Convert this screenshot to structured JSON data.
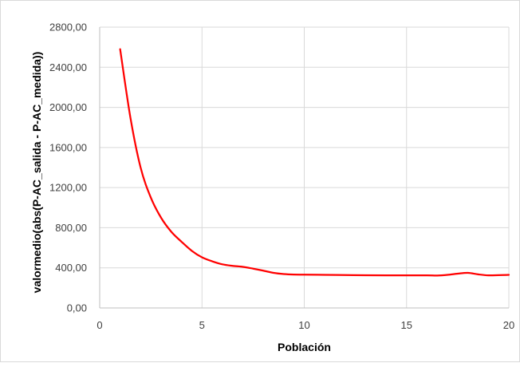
{
  "chart_data": {
    "type": "line",
    "title": "",
    "xlabel": "Población",
    "ylabel": "valormedio(abs(P-AC_salida - P-AC_medida))",
    "xlim": [
      0,
      20
    ],
    "ylim": [
      0,
      2800
    ],
    "x_ticks": [
      0,
      5,
      10,
      15,
      20
    ],
    "x_tick_labels": [
      "0",
      "5",
      "10",
      "15",
      "20"
    ],
    "y_ticks": [
      0,
      400,
      800,
      1200,
      1600,
      2000,
      2400,
      2800
    ],
    "y_tick_labels": [
      "0,00",
      "400,00",
      "800,00",
      "1200,00",
      "1600,00",
      "2000,00",
      "2400,00",
      "2800,00"
    ],
    "grid": true,
    "legend": "none",
    "series": [
      {
        "color": "#ff0000",
        "x": [
          1,
          1.5,
          2,
          2.5,
          3,
          3.5,
          4,
          4.5,
          5,
          5.5,
          6,
          6.5,
          7,
          7.5,
          8,
          8.5,
          9,
          9.5,
          10,
          11,
          12,
          13,
          14,
          15,
          16,
          16.5,
          17,
          17.5,
          18,
          18.5,
          19,
          19.5,
          20
        ],
        "y": [
          2580,
          1900,
          1400,
          1100,
          900,
          760,
          660,
          570,
          505,
          465,
          435,
          420,
          410,
          392,
          372,
          350,
          338,
          333,
          332,
          330,
          328,
          326,
          325,
          325,
          325,
          323,
          330,
          342,
          350,
          335,
          325,
          327,
          330
        ]
      }
    ]
  }
}
